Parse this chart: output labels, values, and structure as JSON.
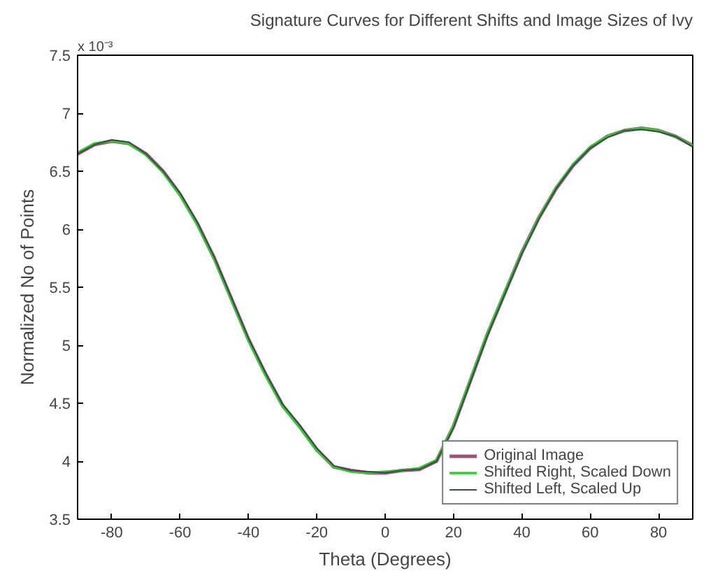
{
  "chart_data": {
    "type": "line",
    "title": "Signature Curves for Different Shifts and Image Sizes of Ivy",
    "xlabel": "Theta (Degrees)",
    "ylabel": "Normalized No of Points",
    "annotations": [
      "x 10⁻³"
    ],
    "x": [
      -90,
      -85,
      -80,
      -75,
      -70,
      -65,
      -60,
      -55,
      -50,
      -45,
      -40,
      -35,
      -30,
      -25,
      -20,
      -15,
      -10,
      -5,
      0,
      5,
      10,
      15,
      20,
      25,
      30,
      35,
      40,
      45,
      50,
      55,
      60,
      65,
      70,
      75,
      80,
      85,
      90
    ],
    "series": [
      {
        "name": "Original Image",
        "color": "#a0527a",
        "values": [
          6.65,
          6.73,
          6.76,
          6.74,
          6.65,
          6.5,
          6.3,
          6.05,
          5.75,
          5.4,
          5.05,
          4.75,
          4.48,
          4.3,
          4.1,
          3.95,
          3.92,
          3.9,
          3.9,
          3.92,
          3.93,
          4.0,
          4.3,
          4.7,
          5.1,
          5.45,
          5.8,
          6.1,
          6.35,
          6.55,
          6.7,
          6.8,
          6.85,
          6.87,
          6.85,
          6.8,
          6.72
        ]
      },
      {
        "name": "Shifted Right, Scaled Down",
        "color": "#33cc33",
        "values": [
          6.66,
          6.74,
          6.76,
          6.74,
          6.64,
          6.49,
          6.29,
          6.04,
          5.74,
          5.39,
          5.04,
          4.74,
          4.47,
          4.29,
          4.09,
          3.95,
          3.91,
          3.9,
          3.91,
          3.92,
          3.94,
          4.01,
          4.31,
          4.71,
          5.11,
          5.46,
          5.8,
          6.1,
          6.36,
          6.56,
          6.71,
          6.8,
          6.85,
          6.87,
          6.85,
          6.8,
          6.72
        ]
      },
      {
        "name": "Shifted Left, Scaled Up",
        "color": "#404850",
        "values": [
          6.65,
          6.73,
          6.77,
          6.75,
          6.65,
          6.5,
          6.31,
          6.06,
          5.76,
          5.41,
          5.06,
          4.76,
          4.49,
          4.31,
          4.11,
          3.96,
          3.92,
          3.91,
          3.9,
          3.92,
          3.93,
          4.0,
          4.29,
          4.69,
          5.09,
          5.44,
          5.79,
          6.09,
          6.35,
          6.55,
          6.7,
          6.79,
          6.85,
          6.86,
          6.84,
          6.8,
          6.71
        ]
      }
    ],
    "xlim": [
      -90,
      90
    ],
    "ylim": [
      3.5,
      7.5
    ],
    "xticks": [
      -80,
      -60,
      -40,
      -20,
      0,
      20,
      40,
      60,
      80
    ],
    "yticks": [
      3.5,
      4,
      4.5,
      5,
      5.5,
      6,
      6.5,
      7,
      7.5
    ],
    "grid": false,
    "legend": "bottom right"
  }
}
